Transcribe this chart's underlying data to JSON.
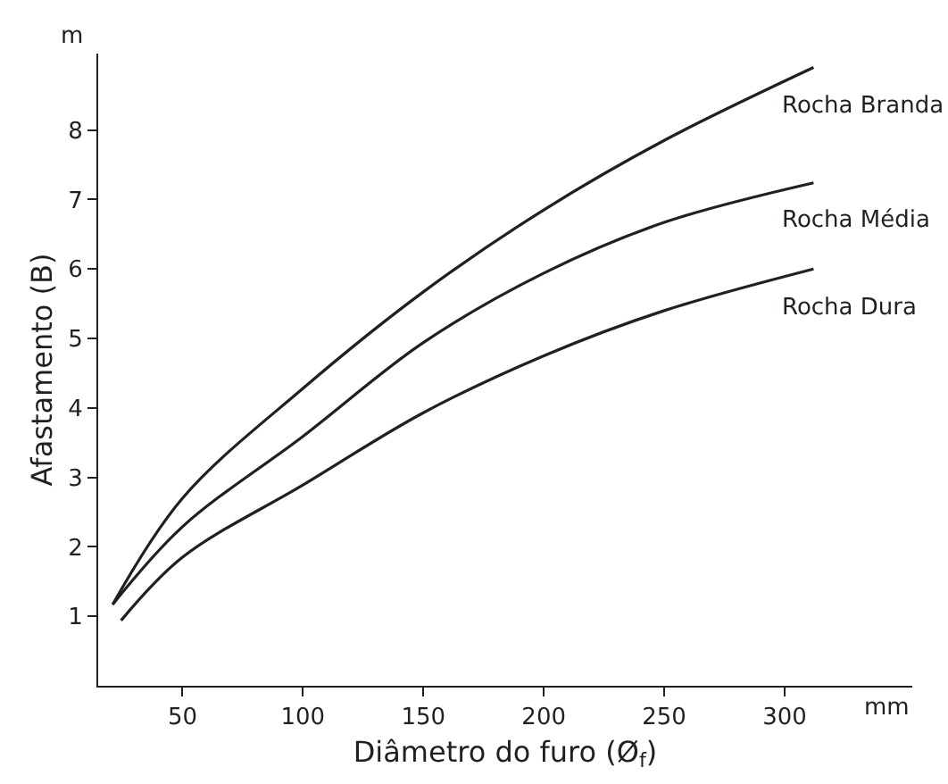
{
  "chart_data": {
    "type": "line",
    "xlabel": "Diâmetro do furo (Ø$_{f}$)",
    "ylabel": "Afastamento (B)",
    "annotations": [
      "m",
      "mm"
    ],
    "xlim": [
      15,
      353
    ],
    "ylim": [
      0,
      9.1
    ],
    "xticks": [
      50,
      100,
      150,
      200,
      250,
      300
    ],
    "yticks": [
      1,
      2,
      3,
      4,
      5,
      6,
      7,
      8
    ],
    "legend": false,
    "marker": "none",
    "line_style": "solid",
    "series": [
      {
        "name": "Rocha Branda",
        "color": "#231f20",
        "x": [
          21,
          50,
          100,
          150,
          200,
          250,
          312
        ],
        "values": [
          1.17,
          2.7,
          4.28,
          5.67,
          6.85,
          7.85,
          8.9
        ]
      },
      {
        "name": "Rocha Média",
        "color": "#231f20",
        "x": [
          21,
          50,
          100,
          150,
          200,
          250,
          312
        ],
        "values": [
          1.17,
          2.29,
          3.59,
          4.94,
          5.94,
          6.67,
          7.24
        ]
      },
      {
        "name": "Rocha Dura",
        "color": "#231f20",
        "x": [
          24.5,
          50,
          100,
          150,
          200,
          250,
          312
        ],
        "values": [
          0.94,
          1.85,
          2.89,
          3.93,
          4.75,
          5.4,
          6.0
        ]
      }
    ]
  }
}
